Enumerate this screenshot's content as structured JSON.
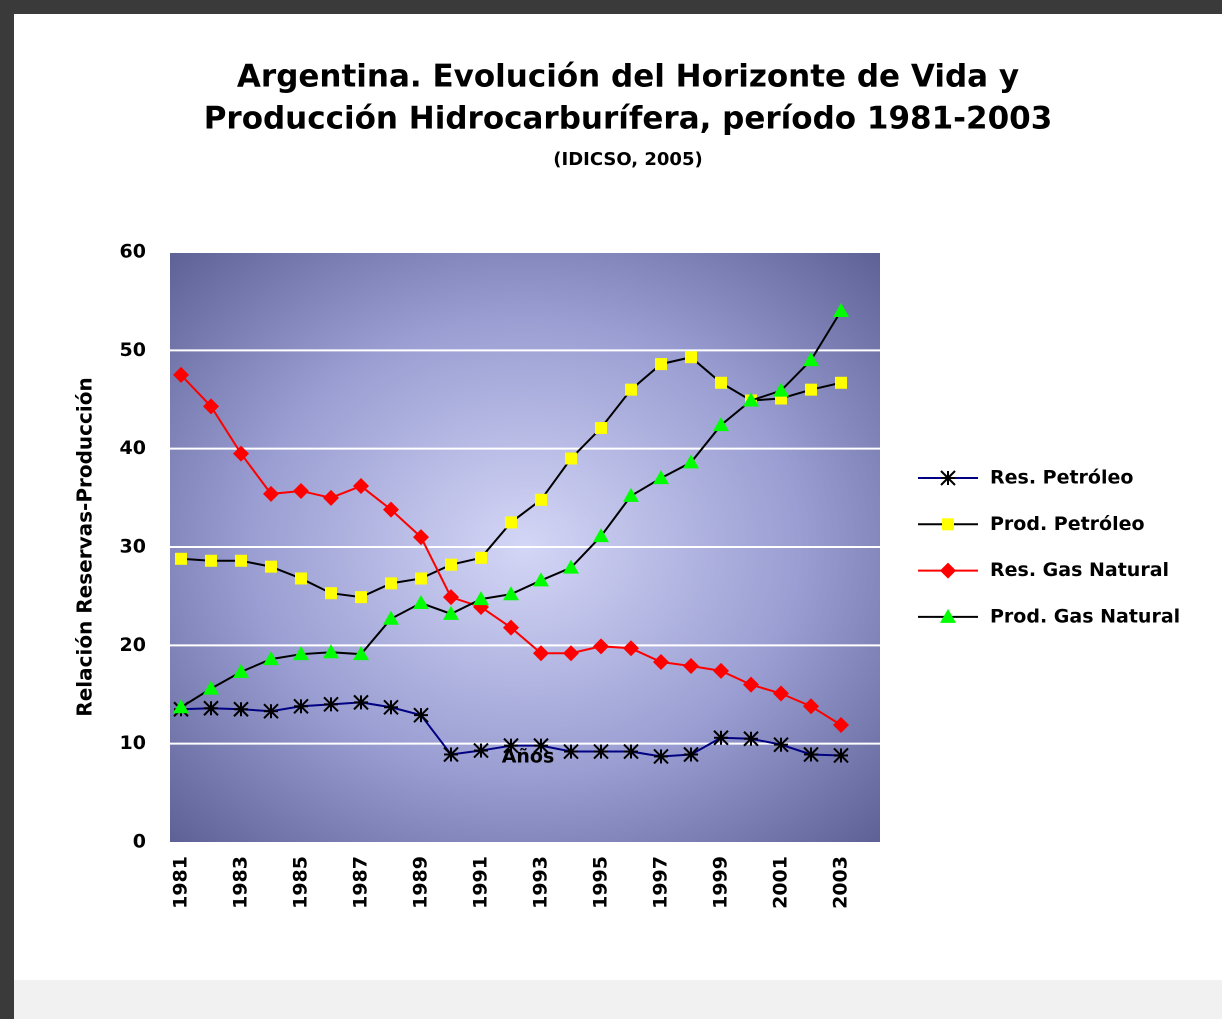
{
  "chart_data": {
    "type": "line",
    "title": [
      "Argentina. Evolución del Horizonte de Vida y",
      "Producción Hidrocarburífera, período 1981-2003"
    ],
    "subtitle": "(IDICSO, 2005)",
    "x_label": "Años",
    "y_label": "Relación Reservas-Producción",
    "categories": [
      "1981",
      null,
      "1983",
      null,
      "1985",
      null,
      "1987",
      null,
      "1989",
      null,
      "1991",
      null,
      "1993",
      null,
      "1995",
      null,
      "1997",
      null,
      "1999",
      null,
      "2001",
      null,
      "2003"
    ],
    "ylim": [
      0,
      60
    ],
    "yticks": [
      0,
      10,
      20,
      30,
      40,
      50,
      60
    ],
    "grid": true,
    "series": [
      {
        "name": "Res. Petróleo",
        "color": "#000080",
        "marker": "star",
        "marker_color": "#000000",
        "values": [
          13.5,
          13.6,
          13.5,
          13.3,
          13.8,
          14.0,
          14.2,
          13.7,
          12.9,
          8.9,
          9.3,
          9.8,
          9.8,
          9.2,
          9.2,
          9.2,
          8.7,
          8.9,
          10.6,
          10.5,
          9.9,
          8.9,
          8.8
        ]
      },
      {
        "name": "Prod. Petróleo",
        "color": "#000000",
        "marker": "square",
        "marker_color": "#ffff00",
        "values": [
          28.8,
          28.6,
          28.6,
          28.0,
          26.8,
          25.3,
          24.9,
          26.3,
          26.8,
          28.2,
          28.9,
          32.5,
          34.8,
          39.0,
          42.1,
          46.0,
          48.6,
          49.3,
          46.7,
          44.9,
          45.1,
          46.0,
          46.7
        ]
      },
      {
        "name": "Res. Gas Natural",
        "color": "#ff0000",
        "marker": "diamond",
        "marker_color": "#ff0000",
        "values": [
          47.5,
          44.3,
          39.5,
          35.4,
          35.7,
          35.0,
          36.2,
          33.8,
          31.0,
          24.9,
          23.9,
          21.8,
          19.2,
          19.2,
          19.9,
          19.7,
          18.3,
          17.9,
          17.4,
          16.0,
          15.1,
          13.8,
          11.9
        ]
      },
      {
        "name": "Prod. Gas Natural",
        "color": "#000000",
        "marker": "triangle",
        "marker_color": "#00ff00",
        "values": [
          13.7,
          15.6,
          17.3,
          18.6,
          19.1,
          19.3,
          19.1,
          22.7,
          24.3,
          23.2,
          24.7,
          25.2,
          26.6,
          27.9,
          31.1,
          35.2,
          37.0,
          38.6,
          42.4,
          44.9,
          45.9,
          49.0,
          54.0
        ]
      }
    ]
  }
}
